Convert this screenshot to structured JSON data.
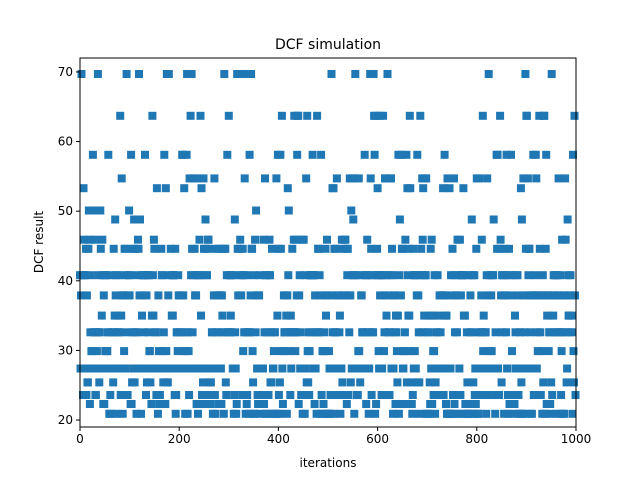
{
  "chart_data": {
    "type": "scatter",
    "title": "DCF simulation",
    "xlabel": "iterations",
    "ylabel": "DCF result",
    "xlim": [
      0,
      1000
    ],
    "ylim": [
      19,
      72
    ],
    "xticks": [
      0,
      200,
      400,
      600,
      800,
      1000
    ],
    "yticks": [
      20,
      30,
      40,
      50,
      60,
      70
    ],
    "marker": "square",
    "color": "#1f77b4",
    "grid": false,
    "levels": [
      20.9,
      22.3,
      23.6,
      25.4,
      27.4,
      29.9,
      32.6,
      35.0,
      37.9,
      40.8,
      44.6,
      45.9,
      48.8,
      50.1,
      53.3,
      54.7,
      58.1,
      63.7,
      69.7
    ],
    "level_weights": [
      6,
      3,
      6,
      3,
      7,
      4,
      8,
      3,
      7,
      8,
      4,
      2,
      1,
      1,
      1,
      2,
      2,
      2,
      2
    ],
    "n_points": 1000,
    "series": [
      {
        "x_start": 0,
        "x_end": 999,
        "y_min": 20.9,
        "y_max": 69.7,
        "y_mean_approx": 33.0
      }
    ]
  }
}
